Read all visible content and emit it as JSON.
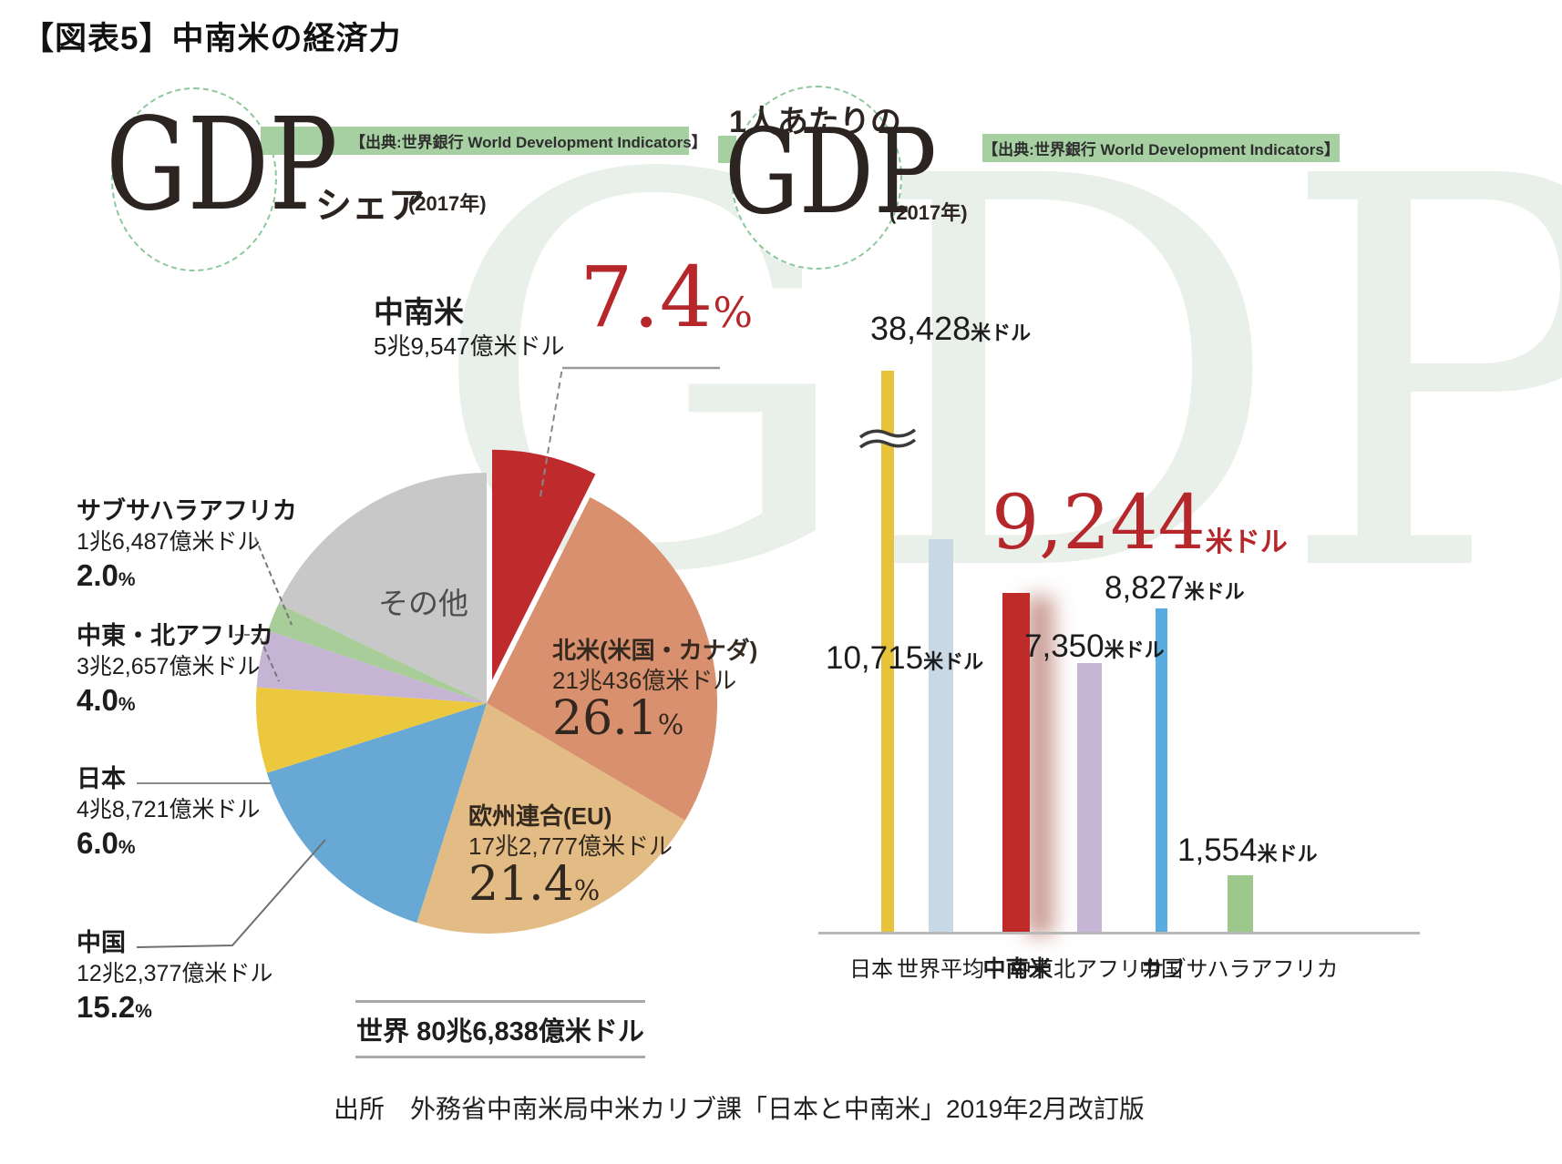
{
  "page": {
    "title": "【図表5】中南米の経済力",
    "source": "出所　外務省中南米局中米カリブ課「日本と中南米」2019年2月改訂版",
    "watermark": "GDP",
    "percent_sign": "%"
  },
  "left_chart": {
    "logo": "GDP",
    "logo_sub": "シェア",
    "logo_year": "(2017年)",
    "banner": "【出典:世界銀行 World Development Indicators】",
    "world_total": "世界 80兆6,838億米ドル"
  },
  "right_chart": {
    "logo_prefix": "1人あたりの",
    "logo": "GDP",
    "logo_year": "(2017年)",
    "banner": "【出典:世界銀行 World Development Indicators】"
  },
  "chart_data": [
    {
      "type": "pie",
      "title": "GDPシェア(2017年)",
      "total_text": "世界 80兆6,838億米ドル",
      "slices": [
        {
          "label": "中南米",
          "value_text": "5兆9,547億米ドル",
          "pct_text": "7.4",
          "pct": 7.4,
          "color": "#bf2b2c",
          "exploded": true
        },
        {
          "label": "北米(米国・カナダ)",
          "value_text": "21兆436億米ドル",
          "pct_text": "26.1",
          "pct": 26.1,
          "color": "#d8906e"
        },
        {
          "label": "欧州連合(EU)",
          "value_text": "17兆2,777億米ドル",
          "pct_text": "21.4",
          "pct": 21.4,
          "color": "#e3bc85"
        },
        {
          "label": "中国",
          "value_text": "12兆2,377億米ドル",
          "pct_text": "15.2",
          "pct": 15.2,
          "color": "#67a8d5"
        },
        {
          "label": "日本",
          "value_text": "4兆8,721億米ドル",
          "pct_text": "6.0",
          "pct": 6.0,
          "color": "#ecc83f"
        },
        {
          "label": "中東・北アフリカ",
          "value_text": "3兆2,657億米ドル",
          "pct_text": "4.0",
          "pct": 4.0,
          "color": "#c6b4d4"
        },
        {
          "label": "サブサハラアフリカ",
          "value_text": "1兆6,487億米ドル",
          "pct_text": "2.0",
          "pct": 2.0,
          "color": "#a8cd98"
        },
        {
          "label": "その他",
          "value_text": "",
          "pct_text": "",
          "pct": 17.9,
          "color": "#c8c8c9"
        }
      ]
    },
    {
      "type": "bar",
      "title": "1人あたりのGDP(2017年)",
      "unit": "米ドル",
      "categories": [
        "日本",
        "世界平均",
        "中南米",
        "中東北アフリカ",
        "中国",
        "サブサハラアフリカ"
      ],
      "values": [
        38428,
        10715,
        9244,
        7350,
        8827,
        1554
      ],
      "values_text": [
        "38,428",
        "10,715",
        "9,244",
        "7,350",
        "8,827",
        "1,554"
      ],
      "colors": [
        "#e7c33b",
        "#c8d8e4",
        "#bf2b28",
        "#c7b5d6",
        "#58ace0",
        "#9dc88b"
      ],
      "highlight_category": "中南米",
      "broken_axis_category": "日本"
    }
  ]
}
